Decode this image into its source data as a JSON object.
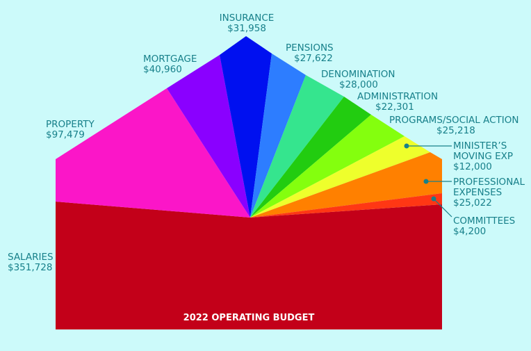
{
  "chart_data": {
    "type": "pie",
    "title": "2022 OPERATING BUDGET",
    "categories": [
      "SALARIES",
      "PROPERTY",
      "MORTGAGE",
      "INSURANCE",
      "PENSIONS",
      "DENOMINATION",
      "ADMINISTRATION",
      "PROGRAMS/SOCIAL ACTION",
      "MINISTER'S MOVING EXP",
      "PROFESSIONAL EXPENSES",
      "COMMITTEES"
    ],
    "values": [
      351728,
      97479,
      40960,
      31958,
      27622,
      28000,
      22301,
      25218,
      12000,
      25022,
      4200
    ],
    "value_labels": [
      "$351,728",
      "$97,479",
      "$40,960",
      "$31,958",
      "$27,622",
      "$28,000",
      "$22,301",
      "$25,218",
      "$12,000",
      "$25,022",
      "$4,200"
    ],
    "colors": [
      "#c30019",
      "#fb16c8",
      "#8a00ff",
      "#0010f0",
      "#2d7dff",
      "#35e58e",
      "#22cc10",
      "#84ff0e",
      "#eeff2c",
      "#ff8000",
      "#ff3714"
    ]
  },
  "labels": {
    "salaries": {
      "name": "SALARIES",
      "value": "$351,728"
    },
    "property": {
      "name": "PROPERTY",
      "value": "$97,479"
    },
    "mortgage": {
      "name": "MORTGAGE",
      "value": "$40,960"
    },
    "insurance": {
      "name": "INSURANCE",
      "value": "$31,958"
    },
    "pensions": {
      "name": "PENSIONS",
      "value": "$27,622"
    },
    "denomination": {
      "name": "DENOMINATION",
      "value": "$28,000"
    },
    "administration": {
      "name": "ADMINISTRATION",
      "value": "$22,301"
    },
    "programs": {
      "name": "PROGRAMS/SOCIAL ACTION",
      "value": "$25,218"
    },
    "ministers": {
      "name1": "MINISTER’S",
      "name2": "MOVING EXP",
      "value": "$12,000"
    },
    "professional": {
      "name1": "PROFESSIONAL",
      "name2": "EXPENSES",
      "value": "$25,022"
    },
    "committees": {
      "name": "COMMITTEES",
      "value": "$4,200"
    }
  },
  "callout_color": "#17808a"
}
